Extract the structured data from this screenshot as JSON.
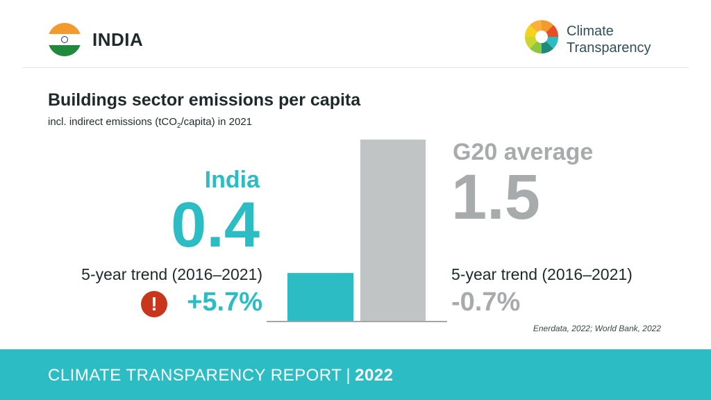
{
  "header": {
    "country": "INDIA",
    "logo_line1": "Climate",
    "logo_line2": "Transparency"
  },
  "colors": {
    "india": "#2bbcc4",
    "g20": "#c1c4c4",
    "g20_text": "#a8abab",
    "alert": "#c8361c",
    "footer": "#2bbcc4"
  },
  "chart_data": {
    "type": "bar",
    "title": "Buildings sector emissions per capita",
    "subtitle_pre": "incl. indirect emissions (tCO",
    "subtitle_sub": "2",
    "subtitle_post": "/capita) in 2021",
    "categories": [
      "India",
      "G20 average"
    ],
    "values": [
      0.4,
      1.5
    ],
    "value_labels": [
      "0.4",
      "1.5"
    ],
    "ylim": [
      0,
      1.5
    ],
    "grid": false,
    "trend_label": "5-year trend (2016–2021)",
    "trends": [
      "+5.7%",
      "-0.7%"
    ]
  },
  "alert_icon": "!",
  "source": "Enerdata, 2022; World Bank, 2022",
  "footer": {
    "report": "CLIMATE TRANSPARENCY REPORT",
    "separator": "|",
    "year": "2022"
  }
}
